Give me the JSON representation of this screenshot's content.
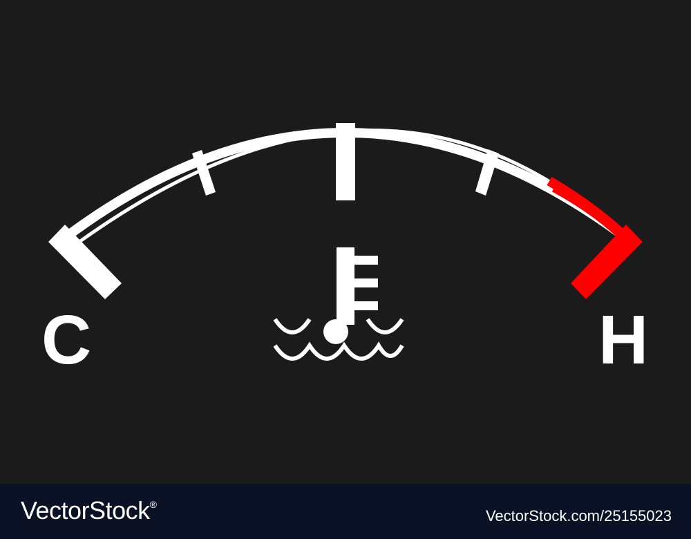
{
  "gauge": {
    "type": "coolant-temperature",
    "cold_label": "C",
    "hot_label": "H",
    "ticks": 5,
    "arc_color": "#ffffff",
    "danger_color": "#ff0000",
    "icon": "coolant-temperature-icon"
  },
  "footer": {
    "brand": "VectorStock",
    "registered": "®",
    "id_text": "VectorStock.com/25155023"
  }
}
